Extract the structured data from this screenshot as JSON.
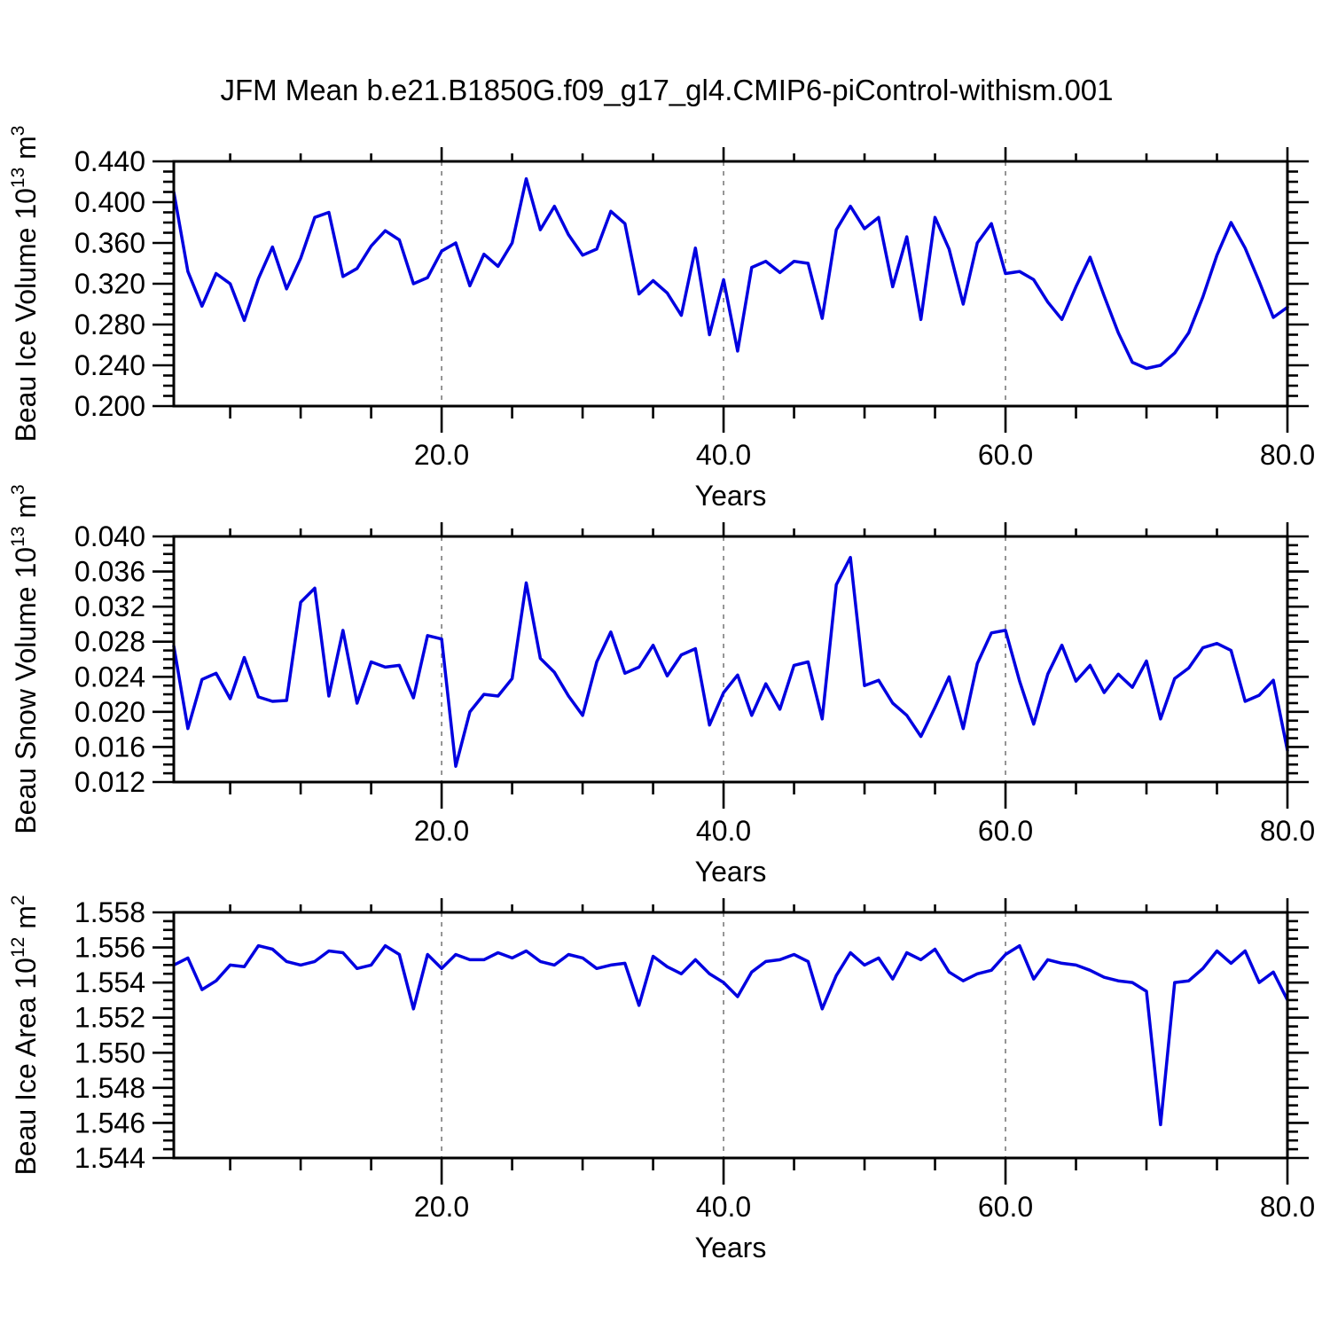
{
  "title": "JFM Mean b.e21.B1850G.f09_g17_gl4.CMIP6-piControl-withism.001",
  "colors": {
    "line": "#0000e0",
    "axis": "#000000",
    "grid": "#8a8a8a",
    "background": "#ffffff"
  },
  "chart_data": [
    {
      "type": "line",
      "title": "Beau Ice Volume",
      "ylabel_parts": [
        [
          "t",
          "Beau Ice Volume 10"
        ],
        [
          "s",
          "13"
        ],
        [
          "t",
          " m"
        ],
        [
          "s",
          "3"
        ]
      ],
      "xlabel": "Years",
      "x_start": 1,
      "x_end": 80,
      "x_major_ticks": [
        20,
        40,
        60,
        80
      ],
      "x_major_labels": [
        "20.0",
        "40.0",
        "60.0",
        "80.0"
      ],
      "x_minor_step": 5,
      "x_gridlines": [
        20,
        40,
        60
      ],
      "ylim": [
        0.2,
        0.44
      ],
      "y_major_step": 0.04,
      "y_minor_step": 0.01,
      "y_label_decimals": 3,
      "grid": "vertical-dashed",
      "legend": "none",
      "values": [
        0.41,
        0.332,
        0.298,
        0.33,
        0.32,
        0.284,
        0.325,
        0.356,
        0.315,
        0.345,
        0.385,
        0.39,
        0.327,
        0.335,
        0.357,
        0.372,
        0.363,
        0.32,
        0.326,
        0.352,
        0.36,
        0.318,
        0.349,
        0.337,
        0.36,
        0.423,
        0.373,
        0.396,
        0.368,
        0.348,
        0.354,
        0.391,
        0.379,
        0.31,
        0.323,
        0.311,
        0.289,
        0.355,
        0.27,
        0.324,
        0.254,
        0.336,
        0.342,
        0.331,
        0.342,
        0.34,
        0.286,
        0.373,
        0.396,
        0.374,
        0.385,
        0.317,
        0.366,
        0.285,
        0.385,
        0.354,
        0.3,
        0.36,
        0.379,
        0.33,
        0.332,
        0.324,
        0.302,
        0.285,
        0.317,
        0.346,
        0.308,
        0.272,
        0.243,
        0.237,
        0.24,
        0.252,
        0.272,
        0.307,
        0.348,
        0.38,
        0.355,
        0.322,
        0.287,
        0.297
      ]
    },
    {
      "type": "line",
      "title": "Beau Snow Volume",
      "ylabel_parts": [
        [
          "t",
          "Beau Snow Volume 10"
        ],
        [
          "s",
          "13"
        ],
        [
          "t",
          " m"
        ],
        [
          "s",
          "3"
        ]
      ],
      "xlabel": "Years",
      "x_start": 1,
      "x_end": 80,
      "x_major_ticks": [
        20,
        40,
        60,
        80
      ],
      "x_major_labels": [
        "20.0",
        "40.0",
        "60.0",
        "80.0"
      ],
      "x_minor_step": 5,
      "x_gridlines": [
        20,
        40,
        60
      ],
      "ylim": [
        0.012,
        0.04
      ],
      "y_major_step": 0.004,
      "y_minor_step": 0.001,
      "y_label_decimals": 3,
      "grid": "vertical-dashed",
      "legend": "none",
      "values": [
        0.0275,
        0.0181,
        0.0237,
        0.0244,
        0.0215,
        0.0262,
        0.0217,
        0.0212,
        0.0213,
        0.0325,
        0.0341,
        0.0218,
        0.0293,
        0.021,
        0.0257,
        0.0251,
        0.0253,
        0.0216,
        0.0287,
        0.0283,
        0.0138,
        0.02,
        0.022,
        0.0218,
        0.0238,
        0.0347,
        0.0261,
        0.0245,
        0.0218,
        0.0196,
        0.0257,
        0.0291,
        0.0244,
        0.0251,
        0.0276,
        0.0241,
        0.0265,
        0.0272,
        0.0185,
        0.0222,
        0.0242,
        0.0196,
        0.0232,
        0.0203,
        0.0253,
        0.0257,
        0.0192,
        0.0345,
        0.0376,
        0.023,
        0.0236,
        0.021,
        0.0196,
        0.0172,
        0.0205,
        0.024,
        0.0181,
        0.0255,
        0.029,
        0.0293,
        0.0235,
        0.0186,
        0.0243,
        0.0276,
        0.0235,
        0.0253,
        0.0222,
        0.0243,
        0.0228,
        0.0258,
        0.0192,
        0.0238,
        0.025,
        0.0273,
        0.0278,
        0.027,
        0.0212,
        0.0219,
        0.0236,
        0.0156
      ]
    },
    {
      "type": "line",
      "title": "Beau Ice Area",
      "ylabel_parts": [
        [
          "t",
          "Beau Ice Area 10"
        ],
        [
          "s",
          "12"
        ],
        [
          "t",
          " m"
        ],
        [
          "s",
          "2"
        ]
      ],
      "xlabel": "Years",
      "x_start": 1,
      "x_end": 80,
      "x_major_ticks": [
        20,
        40,
        60,
        80
      ],
      "x_major_labels": [
        "20.0",
        "40.0",
        "60.0",
        "80.0"
      ],
      "x_minor_step": 5,
      "x_gridlines": [
        20,
        40,
        60
      ],
      "ylim": [
        1.544,
        1.558
      ],
      "y_major_step": 0.002,
      "y_minor_step": 0.0005,
      "y_label_decimals": 3,
      "grid": "vertical-dashed",
      "legend": "none",
      "values": [
        1.555,
        1.5554,
        1.5536,
        1.5541,
        1.555,
        1.5549,
        1.5561,
        1.5559,
        1.5552,
        1.555,
        1.5552,
        1.5558,
        1.5557,
        1.5548,
        1.555,
        1.5561,
        1.5556,
        1.5525,
        1.5556,
        1.5548,
        1.5556,
        1.5553,
        1.5553,
        1.5557,
        1.5554,
        1.5558,
        1.5552,
        1.555,
        1.5556,
        1.5554,
        1.5548,
        1.555,
        1.5551,
        1.5527,
        1.5555,
        1.5549,
        1.5545,
        1.5553,
        1.5545,
        1.554,
        1.5532,
        1.5546,
        1.5552,
        1.5553,
        1.5556,
        1.5552,
        1.5525,
        1.5544,
        1.5557,
        1.555,
        1.5554,
        1.5542,
        1.5557,
        1.5553,
        1.5559,
        1.5546,
        1.5541,
        1.5545,
        1.5547,
        1.5556,
        1.5561,
        1.5542,
        1.5553,
        1.5551,
        1.555,
        1.5547,
        1.5543,
        1.5541,
        1.554,
        1.5535,
        1.5459,
        1.554,
        1.5541,
        1.5548,
        1.5558,
        1.5551,
        1.5558,
        1.554,
        1.5546,
        1.553
      ]
    }
  ]
}
